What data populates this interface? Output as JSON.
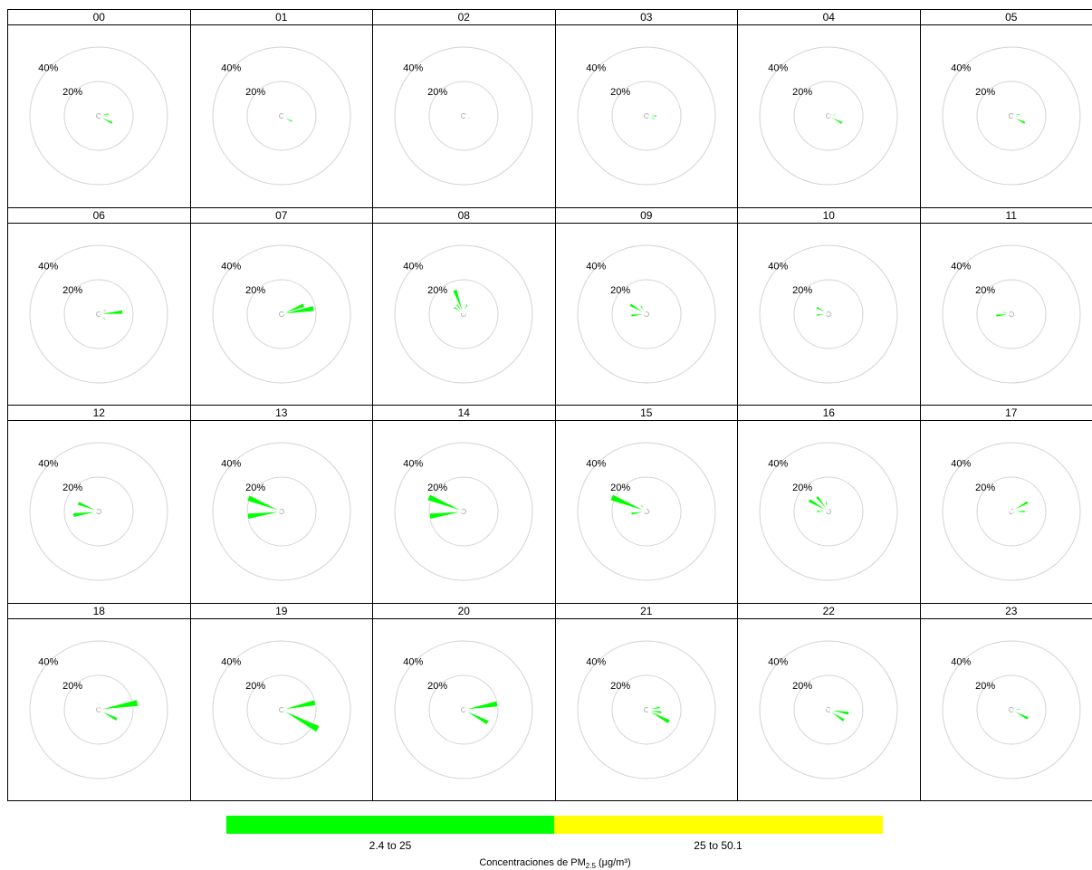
{
  "chart_data": {
    "type": "polar-wind-rose",
    "rings": [
      {
        "value": 20,
        "label": "20%"
      },
      {
        "value": 40,
        "label": "40%"
      }
    ],
    "colorbar": {
      "title": "Concentraciones de PM",
      "title_sub": "2.5",
      "title_unit": " (μg/m³)",
      "ranges": [
        {
          "label": "2.4 to 25",
          "color": "#00ff00"
        },
        {
          "label": "25 to 50.1",
          "color": "#ffff00"
        }
      ]
    },
    "sector_width_deg": 10,
    "panels": [
      {
        "label": "00",
        "petals": [
          [
            78,
            6
          ],
          [
            90,
            5
          ],
          [
            118,
            9
          ]
        ]
      },
      {
        "label": "01",
        "petals": [
          [
            68,
            2
          ],
          [
            90,
            3
          ],
          [
            118,
            7
          ]
        ]
      },
      {
        "label": "02",
        "petals": [
          [
            75,
            3
          ],
          [
            90,
            2
          ],
          [
            112,
            4
          ]
        ]
      },
      {
        "label": "03",
        "petals": [
          [
            90,
            6
          ],
          [
            112,
            5
          ]
        ]
      },
      {
        "label": "04",
        "petals": [
          [
            25,
            2
          ],
          [
            80,
            4
          ],
          [
            118,
            9
          ]
        ]
      },
      {
        "label": "05",
        "petals": [
          [
            78,
            5
          ],
          [
            95,
            4
          ],
          [
            118,
            9
          ]
        ]
      },
      {
        "label": "06",
        "petals": [
          [
            60,
            5
          ],
          [
            85,
            14
          ],
          [
            128,
            5
          ]
        ]
      },
      {
        "label": "07",
        "petals": [
          [
            68,
            14
          ],
          [
            80,
            19
          ]
        ]
      },
      {
        "label": "08",
        "petals": [
          [
            340,
            15
          ],
          [
            325,
            7
          ],
          [
            305,
            7
          ],
          [
            20,
            6
          ],
          [
            45,
            3
          ],
          [
            90,
            2
          ]
        ]
      },
      {
        "label": "09",
        "petals": [
          [
            300,
            11
          ],
          [
            265,
            9
          ],
          [
            325,
            6
          ]
        ]
      },
      {
        "label": "10",
        "petals": [
          [
            300,
            8
          ],
          [
            265,
            7
          ]
        ]
      },
      {
        "label": "11",
        "petals": [
          [
            265,
            9
          ],
          [
            285,
            5
          ]
        ]
      },
      {
        "label": "12",
        "petals": [
          [
            262,
            15
          ],
          [
            292,
            13
          ]
        ]
      },
      {
        "label": "13",
        "petals": [
          [
            262,
            20
          ],
          [
            292,
            21
          ]
        ]
      },
      {
        "label": "14",
        "petals": [
          [
            262,
            20
          ],
          [
            292,
            22
          ]
        ]
      },
      {
        "label": "15",
        "petals": [
          [
            292,
            22
          ],
          [
            262,
            9
          ],
          [
            320,
            5
          ],
          [
            345,
            3
          ]
        ]
      },
      {
        "label": "16",
        "petals": [
          [
            300,
            13
          ],
          [
            322,
            11
          ],
          [
            345,
            6
          ],
          [
            270,
            7
          ]
        ]
      },
      {
        "label": "17",
        "petals": [
          [
            60,
            11
          ],
          [
            90,
            8
          ],
          [
            135,
            3
          ],
          [
            340,
            2
          ],
          [
            270,
            3
          ],
          [
            315,
            2
          ]
        ]
      },
      {
        "label": "18",
        "petals": [
          [
            80,
            23
          ],
          [
            118,
            12
          ],
          [
            60,
            3
          ],
          [
            355,
            4
          ]
        ]
      },
      {
        "label": "19",
        "petals": [
          [
            78,
            20
          ],
          [
            118,
            24
          ],
          [
            60,
            2
          ]
        ]
      },
      {
        "label": "20",
        "petals": [
          [
            80,
            20
          ],
          [
            118,
            16
          ],
          [
            60,
            2
          ],
          [
            20,
            2
          ]
        ]
      },
      {
        "label": "21",
        "petals": [
          [
            118,
            15
          ],
          [
            80,
            8
          ],
          [
            100,
            9
          ],
          [
            60,
            4
          ]
        ]
      },
      {
        "label": "22",
        "petals": [
          [
            100,
            12
          ],
          [
            125,
            11
          ],
          [
            60,
            2
          ],
          [
            300,
            2
          ]
        ]
      },
      {
        "label": "23",
        "petals": [
          [
            85,
            5
          ],
          [
            118,
            11
          ]
        ]
      }
    ]
  }
}
